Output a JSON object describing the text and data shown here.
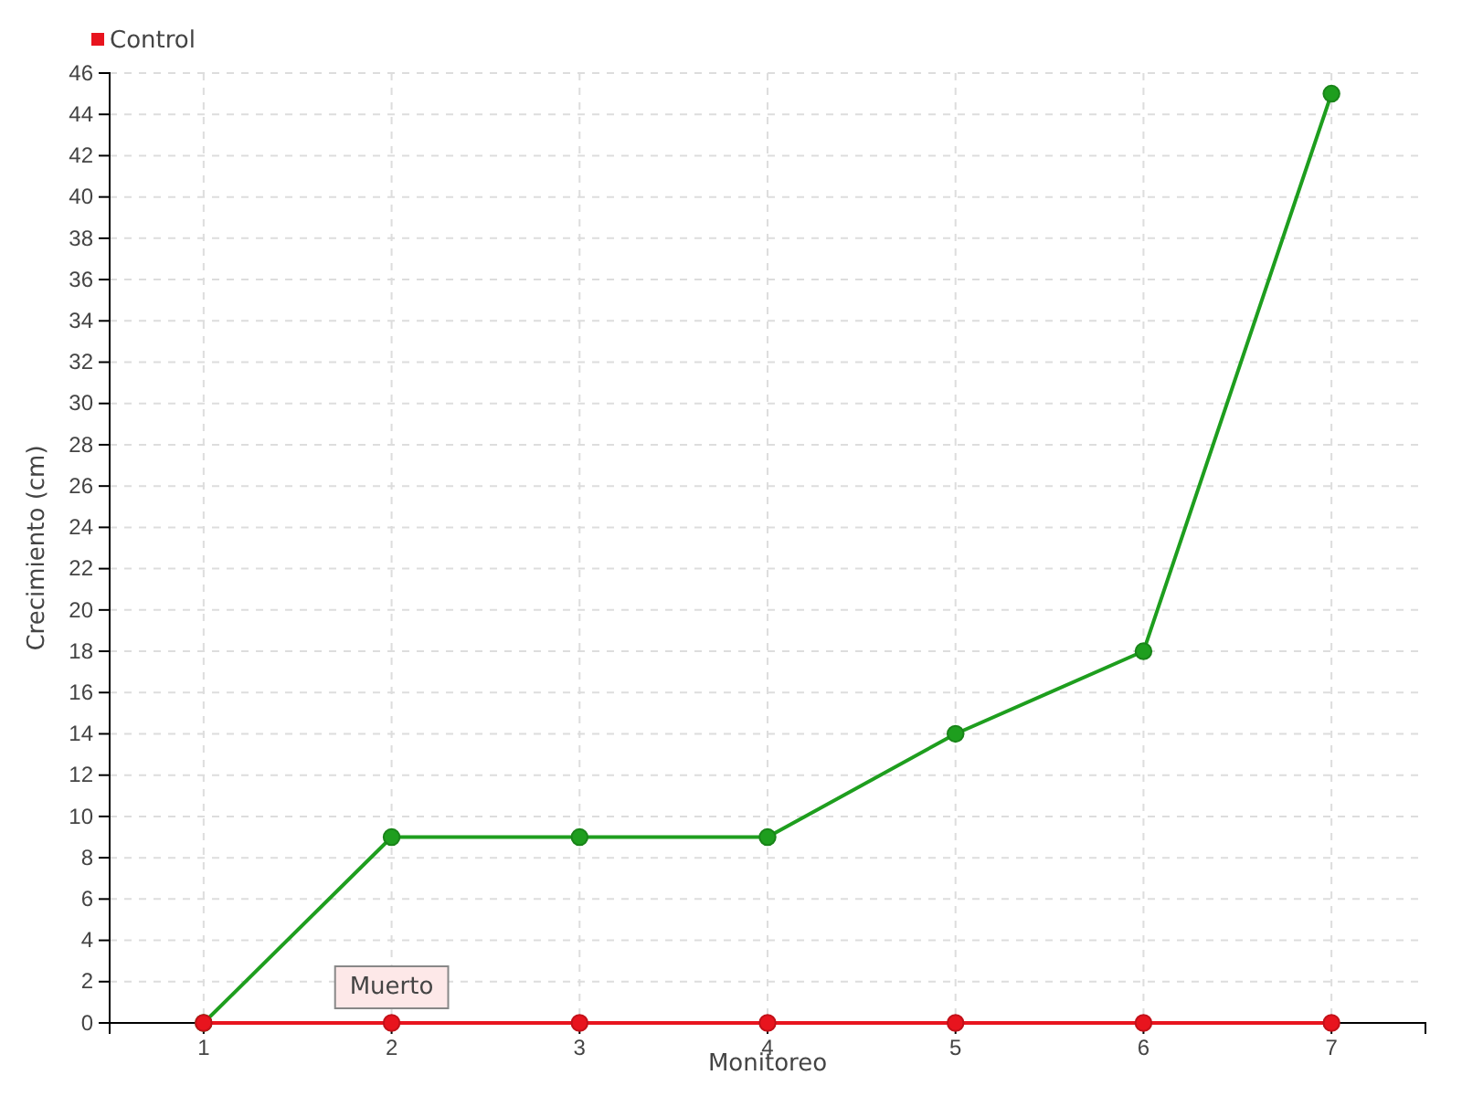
{
  "chart_data": {
    "type": "line",
    "xlabel": "Monitoreo",
    "ylabel": "Crecimiento (cm)",
    "categories": [
      "1",
      "2",
      "3",
      "4",
      "5",
      "6",
      "7"
    ],
    "series": [
      {
        "color": "#1e9e1e",
        "values": [
          0,
          9,
          9,
          9,
          14,
          18,
          45
        ]
      },
      {
        "name": "Control",
        "color": "#e8141e",
        "values": [
          0,
          0,
          0,
          0,
          0,
          0,
          0
        ]
      }
    ],
    "ylim": [
      0,
      46
    ],
    "yticks": [
      0,
      2,
      4,
      6,
      8,
      10,
      12,
      14,
      16,
      18,
      20,
      22,
      24,
      26,
      28,
      30,
      32,
      34,
      36,
      38,
      40,
      42,
      44,
      46
    ],
    "grid": true,
    "legend": "top left",
    "marker": "circle",
    "line_style": "solid",
    "annotations": [
      {
        "text": "Muerto",
        "x": "2",
        "y": 0
      }
    ]
  }
}
